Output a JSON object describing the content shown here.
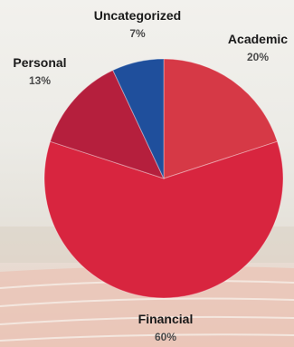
{
  "chart_data": {
    "type": "pie",
    "title": "",
    "start_angle_deg": 0,
    "direction": "clockwise",
    "slices": [
      {
        "label": "Academic",
        "value": 20,
        "display": "20%",
        "color": "#d63946"
      },
      {
        "label": "Financial",
        "value": 60,
        "display": "60%",
        "color": "#d8253f"
      },
      {
        "label": "Personal",
        "value": 13,
        "display": "13%",
        "color": "#b51f3d"
      },
      {
        "label": "Uncategorized",
        "value": 7,
        "display": "7%",
        "color": "#1f4f9c"
      }
    ]
  }
}
